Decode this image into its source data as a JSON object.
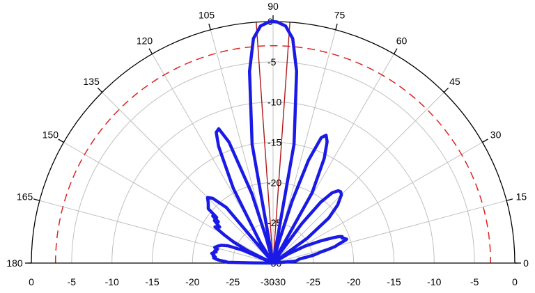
{
  "chart_data": {
    "type": "polar",
    "angle_range": [
      0,
      180
    ],
    "angle_ticks": [
      0,
      15,
      30,
      45,
      60,
      75,
      90,
      105,
      120,
      135,
      150,
      165,
      180
    ],
    "angle_tick_labels": [
      "0",
      "15",
      "30",
      "45",
      "60",
      "75",
      "90",
      "105",
      "120",
      "135",
      "150",
      "165",
      "180"
    ],
    "radial_range": [
      -30,
      0
    ],
    "radial_ticks": [
      -30,
      -25,
      -20,
      -15,
      -10,
      -5,
      0
    ],
    "radial_tick_labels": [
      "-30",
      "-25",
      "-20",
      "-15",
      "-10",
      "-5",
      "0"
    ],
    "bottom_axis_labels": [
      "0",
      "-5",
      "-10",
      "-15",
      "-20",
      "-25",
      "-30",
      "-30",
      "-25",
      "-20",
      "-15",
      "-10",
      "-5",
      "0"
    ],
    "grid": true,
    "reference_level_db": -3,
    "beamwidth_lines_deg": [
      86,
      94
    ],
    "colors": {
      "pattern": "#1a1ae6",
      "reference": "#dd2222",
      "grid": "#c0c0c0",
      "axis": "#000000"
    },
    "series": [
      {
        "points": [
          [
            0.5,
            -30
          ],
          [
            5,
            -27.2
          ],
          [
            9,
            -26.6
          ],
          [
            10,
            -25.8
          ],
          [
            11,
            -24.9
          ],
          [
            12,
            -24.4
          ],
          [
            13,
            -23.9
          ],
          [
            14,
            -22.9
          ],
          [
            15,
            -22.0
          ],
          [
            16,
            -21.6
          ],
          [
            17,
            -21.0
          ],
          [
            17.5,
            -20.6
          ],
          [
            18,
            -20.4
          ],
          [
            19,
            -20.6
          ],
          [
            20,
            -20.9
          ],
          [
            21,
            -20.8
          ],
          [
            22,
            -21.2
          ],
          [
            23,
            -22.0
          ],
          [
            25,
            -23.5
          ],
          [
            28,
            -25.5
          ],
          [
            31,
            -27.8
          ],
          [
            33,
            -29.5
          ],
          [
            34,
            -30
          ],
          [
            36,
            -24.8
          ],
          [
            39,
            -21.1
          ],
          [
            42,
            -19.2
          ],
          [
            45,
            -18.0
          ],
          [
            46.5,
            -17.8
          ],
          [
            48,
            -17.9
          ],
          [
            50,
            -18.6
          ],
          [
            52,
            -20.4
          ],
          [
            54,
            -24.0
          ],
          [
            55,
            -28.0
          ],
          [
            57,
            -30
          ],
          [
            61,
            -20.0
          ],
          [
            64,
            -15.5
          ],
          [
            66,
            -13.5
          ],
          [
            67.5,
            -12.8
          ],
          [
            69,
            -13.3
          ],
          [
            71,
            -16.5
          ],
          [
            73,
            -22.0
          ],
          [
            75,
            -27.5
          ],
          [
            76,
            -30
          ],
          [
            80,
            -15.0
          ],
          [
            83,
            -6.0
          ],
          [
            85,
            -2.0
          ],
          [
            87,
            -0.5
          ],
          [
            89,
            -0.05
          ],
          [
            90,
            0
          ],
          [
            91,
            -0.05
          ],
          [
            93,
            -0.5
          ],
          [
            95,
            -2.0
          ],
          [
            97,
            -6.0
          ],
          [
            100,
            -15.0
          ],
          [
            104,
            -30
          ],
          [
            105,
            -27.0
          ],
          [
            107,
            -21.0
          ],
          [
            110,
            -14.0
          ],
          [
            112,
            -12.0
          ],
          [
            113.5,
            -12.3
          ],
          [
            115,
            -14.0
          ],
          [
            118,
            -19.5
          ],
          [
            122,
            -27.0
          ],
          [
            123,
            -30
          ],
          [
            127,
            -29.5
          ],
          [
            130,
            -21.0
          ],
          [
            133,
            -19.0
          ],
          [
            135,
            -18.5
          ],
          [
            137,
            -19.0
          ],
          [
            140,
            -19.5
          ],
          [
            141,
            -21.0
          ],
          [
            142,
            -20.5
          ],
          [
            143,
            -21.5
          ],
          [
            144,
            -21.0
          ],
          [
            146,
            -22.0
          ],
          [
            148,
            -21.5
          ],
          [
            150,
            -23.0
          ],
          [
            152,
            -24.5
          ],
          [
            154,
            -26.5
          ],
          [
            155,
            -29.5
          ],
          [
            155.5,
            -30
          ],
          [
            157,
            -26.0
          ],
          [
            159,
            -24.0
          ],
          [
            161,
            -23.2
          ],
          [
            163,
            -22.8
          ],
          [
            165,
            -22.5
          ],
          [
            166,
            -22.9
          ],
          [
            167,
            -22.8
          ],
          [
            168,
            -22.6
          ],
          [
            169,
            -22.8
          ],
          [
            170,
            -22.5
          ],
          [
            171,
            -22.3
          ],
          [
            172,
            -22.6
          ],
          [
            173,
            -22.5
          ],
          [
            174,
            -22.8
          ],
          [
            175,
            -22.6
          ],
          [
            176,
            -22.9
          ],
          [
            177,
            -23.3
          ],
          [
            178,
            -24.0
          ],
          [
            179,
            -24.4
          ],
          [
            179.5,
            -27.6
          ],
          [
            180,
            -30
          ]
        ]
      }
    ]
  }
}
